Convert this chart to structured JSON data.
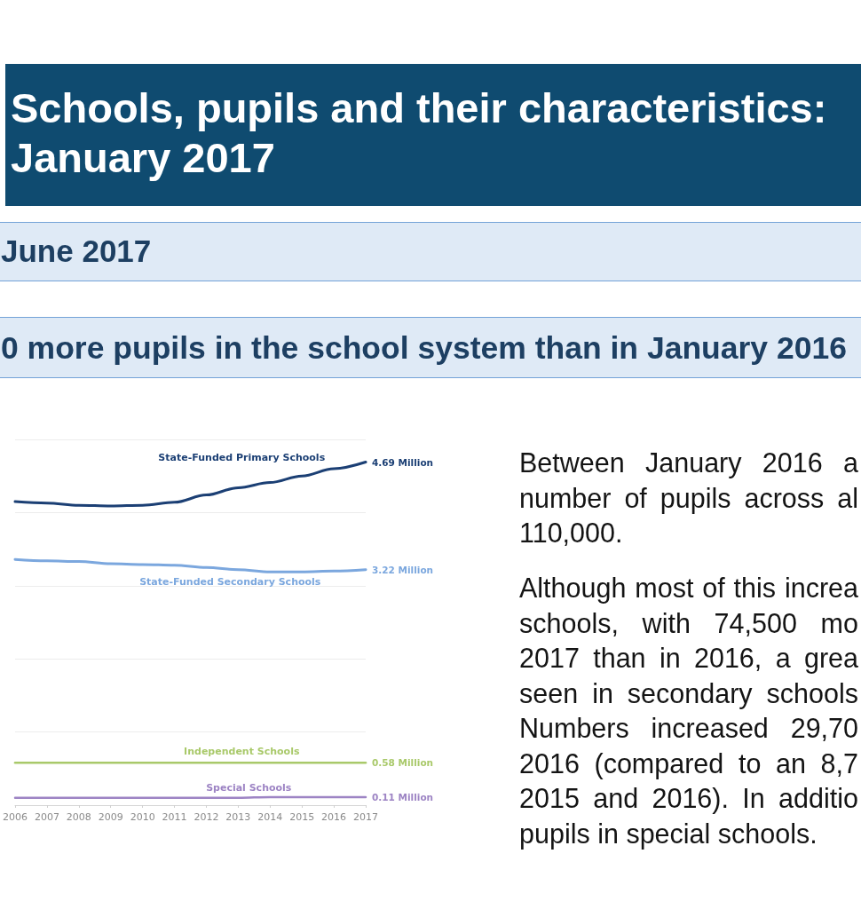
{
  "chart_data": {
    "type": "line",
    "title": "Schools, pupils and their characteristics: January 2017",
    "subtitle": "June 2017",
    "annotations": [
      "0 more pupils in the school system than in January 2016",
      "Between January 2016 a\nnumber of pupils across al\n110,000.",
      "Although most of this increa\nschools, with 74,500 mo\n2017 than in 2016, a grea\nseen in secondary schools\nNumbers increased 29,70\n2016 (compared to an 8,7\n2015 and 2016). In additio\npupils in special schools."
    ],
    "categories": [
      "2006",
      "2007",
      "2008",
      "2009",
      "2010",
      "2011",
      "2012",
      "2013",
      "2014",
      "2015",
      "2016",
      "2017"
    ],
    "series": [
      {
        "name": "State-Funded Primary Schools",
        "color": "#1b3f74",
        "values": [
          4.15,
          4.13,
          4.1,
          4.09,
          4.1,
          4.14,
          4.24,
          4.34,
          4.41,
          4.5,
          4.6,
          4.69
        ],
        "value_labels": [
          null,
          null,
          null,
          null,
          null,
          null,
          null,
          null,
          null,
          null,
          null,
          "4.69 Million"
        ]
      },
      {
        "name": "State-Funded Secondary Schools",
        "color": "#7ba7de",
        "values": [
          3.36,
          3.34,
          3.33,
          3.3,
          3.29,
          3.28,
          3.25,
          3.22,
          3.19,
          3.19,
          3.2,
          3.22
        ],
        "value_labels": [
          null,
          null,
          null,
          null,
          null,
          null,
          null,
          null,
          null,
          null,
          null,
          "3.22 Million"
        ]
      },
      {
        "name": "Independent Schools",
        "color": "#a9c96a",
        "values": [
          0.58,
          0.58,
          0.58,
          0.58,
          0.58,
          0.58,
          0.58,
          0.58,
          0.58,
          0.58,
          0.58,
          0.58
        ],
        "value_labels": [
          null,
          null,
          null,
          null,
          null,
          null,
          null,
          null,
          null,
          null,
          null,
          "0.58 Million"
        ]
      },
      {
        "name": "Special Schools",
        "color": "#9d84c4",
        "values": [
          0.1,
          0.1,
          0.1,
          0.1,
          0.1,
          0.1,
          0.1,
          0.1,
          0.11,
          0.11,
          0.11,
          0.11
        ],
        "value_labels": [
          null,
          null,
          null,
          null,
          null,
          null,
          null,
          null,
          null,
          null,
          null,
          "0.11 Million"
        ]
      }
    ],
    "ylim": [
      0,
      5
    ],
    "yticks": [
      {
        "value": 0,
        "label": null
      },
      {
        "value": 1,
        "label": null
      },
      {
        "value": 2,
        "label": null
      },
      {
        "value": 3,
        "label": null
      },
      {
        "value": 4,
        "label": null
      },
      {
        "value": 5,
        "label": null
      }
    ],
    "grid": "y",
    "legend": false,
    "tick_labels": "x",
    "marker": "none"
  }
}
